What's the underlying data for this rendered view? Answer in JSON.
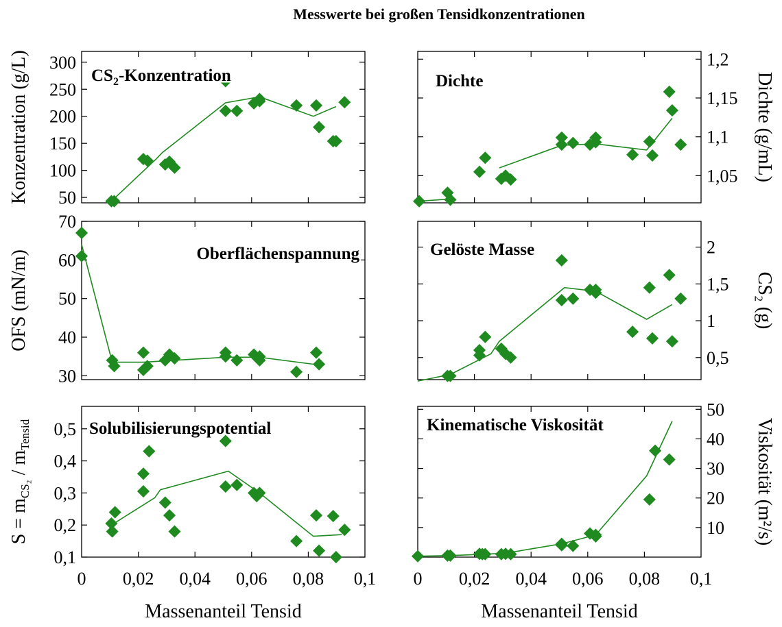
{
  "title": "Messwerte bei großen Tensidkonzentrationen",
  "colors": {
    "marker": "#1f8a1f",
    "line": "#1f8a1f",
    "axis": "#000000"
  },
  "chart_data": [
    {
      "id": "cs2",
      "type": "scatter",
      "panel_label": {
        "text": "CS",
        "sub": "2",
        "tail": "-Konzentration"
      },
      "ylabel": "Konzentration (g/L)",
      "ylabel_side": "left",
      "xlabel": "",
      "xlim": [
        0,
        0.1
      ],
      "ylim": [
        40,
        320
      ],
      "xticks": [],
      "yticks": [
        {
          "v": 50,
          "label": "50"
        },
        {
          "v": 100,
          "label": "100"
        },
        {
          "v": 150,
          "label": "150"
        },
        {
          "v": 200,
          "label": "200"
        },
        {
          "v": 250,
          "label": "250"
        },
        {
          "v": 300,
          "label": "300"
        }
      ],
      "points": [
        [
          0.0105,
          43
        ],
        [
          0.0115,
          43
        ],
        [
          0.0218,
          121
        ],
        [
          0.0232,
          118
        ],
        [
          0.0295,
          111
        ],
        [
          0.031,
          116
        ],
        [
          0.0328,
          105
        ],
        [
          0.0508,
          265
        ],
        [
          0.0508,
          210
        ],
        [
          0.0548,
          210
        ],
        [
          0.0608,
          224
        ],
        [
          0.0628,
          228
        ],
        [
          0.0628,
          232
        ],
        [
          0.0758,
          220
        ],
        [
          0.0828,
          220
        ],
        [
          0.0838,
          180
        ],
        [
          0.0888,
          154
        ],
        [
          0.0898,
          154
        ],
        [
          0.0928,
          226
        ]
      ],
      "line": [
        [
          0.0105,
          43
        ],
        [
          0.0265,
          122
        ],
        [
          0.0285,
          133
        ],
        [
          0.0508,
          225
        ],
        [
          0.0628,
          236
        ],
        [
          0.0818,
          200
        ],
        [
          0.0898,
          218
        ]
      ]
    },
    {
      "id": "dichte",
      "type": "scatter",
      "panel_label": {
        "text": "Dichte",
        "sub": "",
        "tail": ""
      },
      "ylabel": "Dichte (g/mL)",
      "ylabel_side": "right",
      "xlabel": "",
      "xlim": [
        0,
        0.1
      ],
      "ylim": [
        1.015,
        1.21
      ],
      "xticks": [],
      "yticks": [
        {
          "v": 1.05,
          "label": "1,05"
        },
        {
          "v": 1.1,
          "label": "1,1"
        },
        {
          "v": 1.15,
          "label": "1,15"
        },
        {
          "v": 1.2,
          "label": "1,2"
        }
      ],
      "points": [
        [
          0.0005,
          1.017
        ],
        [
          0.0105,
          1.028
        ],
        [
          0.0115,
          1.019
        ],
        [
          0.0218,
          1.055
        ],
        [
          0.0238,
          1.073
        ],
        [
          0.0295,
          1.046
        ],
        [
          0.031,
          1.05
        ],
        [
          0.0328,
          1.045
        ],
        [
          0.0508,
          1.099
        ],
        [
          0.0508,
          1.09
        ],
        [
          0.0548,
          1.092
        ],
        [
          0.0608,
          1.09
        ],
        [
          0.0628,
          1.093
        ],
        [
          0.0628,
          1.099
        ],
        [
          0.0758,
          1.077
        ],
        [
          0.0818,
          1.094
        ],
        [
          0.0828,
          1.076
        ],
        [
          0.0888,
          1.158
        ],
        [
          0.0898,
          1.134
        ],
        [
          0.0928,
          1.09
        ]
      ],
      "line_segments": [
        [
          [
            0.0005,
            1.017
          ],
          [
            0.0115,
            1.02
          ]
        ],
        [
          [
            0.0288,
            1.06
          ],
          [
            0.0508,
            1.089
          ],
          [
            0.0628,
            1.091
          ],
          [
            0.0808,
            1.083
          ],
          [
            0.0898,
            1.124
          ]
        ]
      ]
    },
    {
      "id": "ofs",
      "type": "scatter",
      "panel_label": {
        "text": "Oberflächenspannung",
        "sub": "",
        "tail": ""
      },
      "ylabel": "OFS (mN/m)",
      "ylabel_side": "left",
      "xlabel": "",
      "xlim": [
        0,
        0.1
      ],
      "ylim": [
        29,
        70
      ],
      "xticks": [],
      "yticks": [
        {
          "v": 30,
          "label": "30"
        },
        {
          "v": 40,
          "label": "40"
        },
        {
          "v": 50,
          "label": "50"
        },
        {
          "v": 60,
          "label": "60"
        },
        {
          "v": 70,
          "label": "70"
        }
      ],
      "points": [
        [
          0.0,
          67
        ],
        [
          0.0,
          61
        ],
        [
          0.0108,
          34
        ],
        [
          0.0115,
          32.5
        ],
        [
          0.0218,
          36
        ],
        [
          0.0218,
          31.5
        ],
        [
          0.0232,
          32.5
        ],
        [
          0.0295,
          34
        ],
        [
          0.031,
          35.5
        ],
        [
          0.0328,
          34.5
        ],
        [
          0.0508,
          36
        ],
        [
          0.0508,
          35
        ],
        [
          0.0548,
          34
        ],
        [
          0.0608,
          35.5
        ],
        [
          0.0628,
          35
        ],
        [
          0.0628,
          34
        ],
        [
          0.0758,
          31
        ],
        [
          0.0828,
          36
        ],
        [
          0.0838,
          33
        ]
      ],
      "line": [
        [
          0.0,
          64
        ],
        [
          0.0108,
          33.5
        ],
        [
          0.0218,
          33.5
        ],
        [
          0.0508,
          34.8
        ],
        [
          0.0628,
          34.8
        ],
        [
          0.0818,
          33
        ]
      ]
    },
    {
      "id": "masse",
      "type": "scatter",
      "panel_label": {
        "text": "Gelöste Masse",
        "sub": "",
        "tail": ""
      },
      "ylabel": "CS₂ (g)",
      "ylabel_side": "right",
      "xlabel": "",
      "xlim": [
        0,
        0.1
      ],
      "ylim": [
        0.2,
        2.35
      ],
      "xticks": [],
      "yticks": [
        {
          "v": 0.5,
          "label": "0,5"
        },
        {
          "v": 1,
          "label": "1"
        },
        {
          "v": 1.5,
          "label": "1,5"
        },
        {
          "v": 2,
          "label": "2"
        }
      ],
      "points": [
        [
          0.0105,
          0.25
        ],
        [
          0.0115,
          0.25
        ],
        [
          0.0218,
          0.6
        ],
        [
          0.0218,
          0.53
        ],
        [
          0.0238,
          0.78
        ],
        [
          0.0295,
          0.62
        ],
        [
          0.031,
          0.55
        ],
        [
          0.0328,
          0.5
        ],
        [
          0.0508,
          1.82
        ],
        [
          0.0508,
          1.28
        ],
        [
          0.0548,
          1.3
        ],
        [
          0.0608,
          1.42
        ],
        [
          0.0628,
          1.38
        ],
        [
          0.0628,
          1.42
        ],
        [
          0.0758,
          0.85
        ],
        [
          0.0818,
          1.45
        ],
        [
          0.0828,
          0.76
        ],
        [
          0.0888,
          1.62
        ],
        [
          0.0898,
          0.72
        ],
        [
          0.0928,
          1.3
        ]
      ],
      "line": [
        [
          0.0,
          0.18
        ],
        [
          0.0115,
          0.27
        ],
        [
          0.0258,
          0.55
        ],
        [
          0.0288,
          0.72
        ],
        [
          0.0518,
          1.45
        ],
        [
          0.0628,
          1.4
        ],
        [
          0.0808,
          1.02
        ],
        [
          0.0898,
          1.22
        ]
      ]
    },
    {
      "id": "solub",
      "type": "scatter",
      "panel_label": {
        "text": "Solubilisierungspotential",
        "sub": "",
        "tail": ""
      },
      "ylabel": "S = m",
      "ylabel_sub1": "CS₂",
      "ylabel_mid": " / m",
      "ylabel_sub2": "Tensid",
      "ylabel_side": "left",
      "xlabel": "Massenanteil Tensid",
      "xlim": [
        0,
        0.1
      ],
      "ylim": [
        0.1,
        0.57
      ],
      "xticks": [
        {
          "v": 0,
          "label": "0"
        },
        {
          "v": 0.02,
          "label": "0,02"
        },
        {
          "v": 0.04,
          "label": "0,04"
        },
        {
          "v": 0.06,
          "label": "0,06"
        },
        {
          "v": 0.08,
          "label": "0,08"
        },
        {
          "v": 0.1,
          "label": "0,1"
        }
      ],
      "yticks": [
        {
          "v": 0.1,
          "label": "0,1"
        },
        {
          "v": 0.2,
          "label": "0,2"
        },
        {
          "v": 0.3,
          "label": "0,3"
        },
        {
          "v": 0.4,
          "label": "0,4"
        },
        {
          "v": 0.5,
          "label": "0,5"
        }
      ],
      "points": [
        [
          0.0105,
          0.205
        ],
        [
          0.0108,
          0.18
        ],
        [
          0.0118,
          0.24
        ],
        [
          0.0218,
          0.36
        ],
        [
          0.0218,
          0.305
        ],
        [
          0.0238,
          0.43
        ],
        [
          0.0295,
          0.27
        ],
        [
          0.031,
          0.23
        ],
        [
          0.0328,
          0.18
        ],
        [
          0.0508,
          0.462
        ],
        [
          0.0508,
          0.32
        ],
        [
          0.0548,
          0.325
        ],
        [
          0.0608,
          0.3
        ],
        [
          0.0618,
          0.29
        ],
        [
          0.0628,
          0.3
        ],
        [
          0.0758,
          0.15
        ],
        [
          0.0828,
          0.23
        ],
        [
          0.0838,
          0.12
        ],
        [
          0.0888,
          0.228
        ],
        [
          0.0898,
          0.1
        ],
        [
          0.0928,
          0.185
        ]
      ],
      "line": [
        [
          0.0105,
          0.2
        ],
        [
          0.0258,
          0.285
        ],
        [
          0.0278,
          0.31
        ],
        [
          0.0518,
          0.368
        ],
        [
          0.0628,
          0.3
        ],
        [
          0.0818,
          0.165
        ],
        [
          0.0918,
          0.17
        ]
      ]
    },
    {
      "id": "visko",
      "type": "scatter",
      "panel_label": {
        "text": "Kinematische Viskosität",
        "sub": "",
        "tail": ""
      },
      "ylabel": "Viskosität (m²/s)",
      "ylabel_side": "right",
      "xlabel": "Massenanteil Tensid",
      "xlim": [
        0,
        0.1
      ],
      "ylim": [
        0,
        51
      ],
      "xticks": [
        {
          "v": 0,
          "label": "0"
        },
        {
          "v": 0.02,
          "label": "0,02"
        },
        {
          "v": 0.04,
          "label": "0,04"
        },
        {
          "v": 0.06,
          "label": "0,06"
        },
        {
          "v": 0.08,
          "label": "0,08"
        },
        {
          "v": 0.1,
          "label": "0,1"
        }
      ],
      "yticks": [
        {
          "v": 10,
          "label": "10"
        },
        {
          "v": 20,
          "label": "20"
        },
        {
          "v": 30,
          "label": "30"
        },
        {
          "v": 40,
          "label": "40"
        },
        {
          "v": 50,
          "label": "50"
        }
      ],
      "points": [
        [
          0.0,
          0.3
        ],
        [
          0.0105,
          0.5
        ],
        [
          0.0115,
          0.5
        ],
        [
          0.0218,
          1.1
        ],
        [
          0.0228,
          1.0
        ],
        [
          0.0238,
          1.0
        ],
        [
          0.0295,
          1.0
        ],
        [
          0.031,
          1.1
        ],
        [
          0.0328,
          1.0
        ],
        [
          0.0508,
          4.0
        ],
        [
          0.0508,
          4.5
        ],
        [
          0.0548,
          3.8
        ],
        [
          0.0608,
          8.0
        ],
        [
          0.0628,
          7.0
        ],
        [
          0.0628,
          7.5
        ],
        [
          0.0818,
          19.5
        ],
        [
          0.0838,
          36
        ],
        [
          0.0888,
          33
        ]
      ],
      "line": [
        [
          0.0,
          0.3
        ],
        [
          0.0115,
          0.5
        ],
        [
          0.0308,
          1.3
        ],
        [
          0.0508,
          4.5
        ],
        [
          0.0628,
          7.5
        ],
        [
          0.0808,
          27.5
        ],
        [
          0.0898,
          46
        ]
      ]
    }
  ]
}
